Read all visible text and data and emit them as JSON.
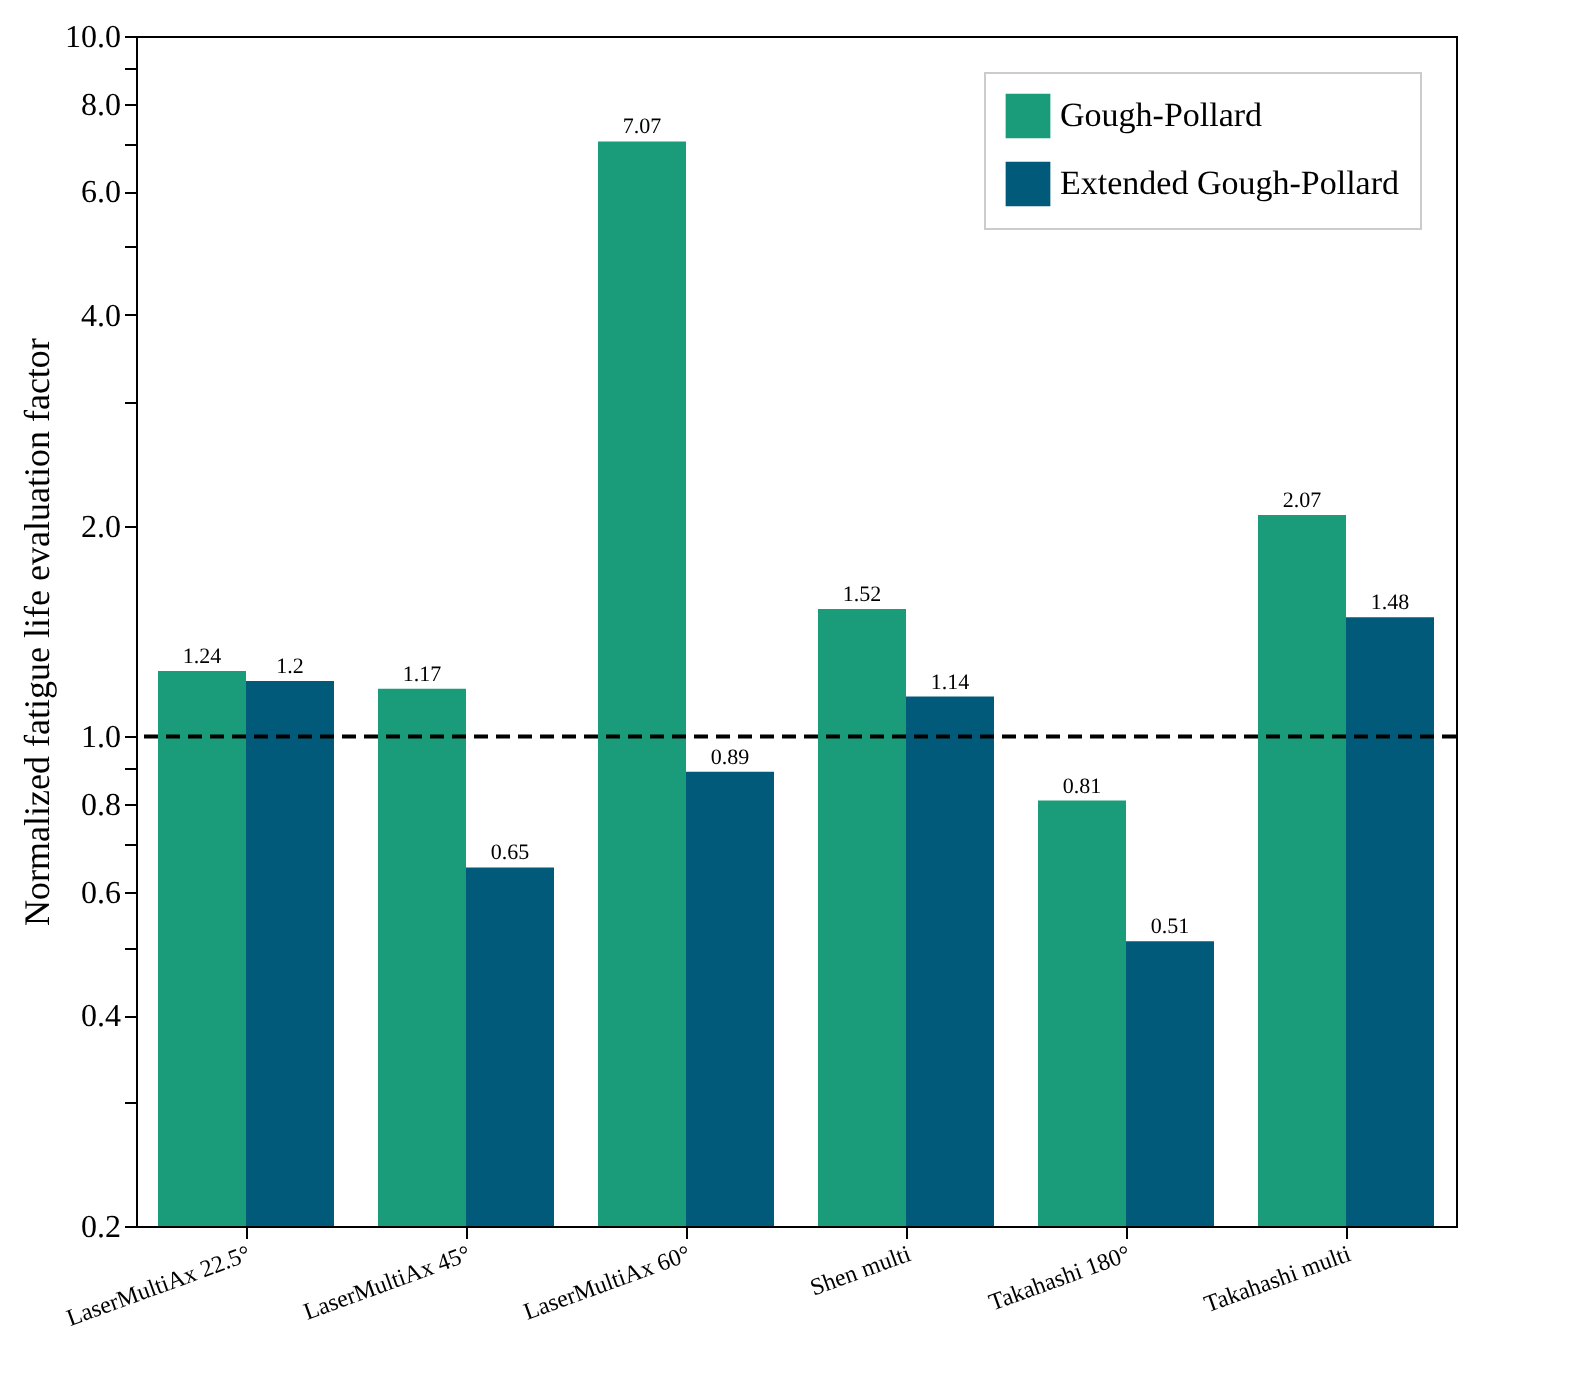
{
  "chart_data": {
    "type": "bar",
    "ylabel": "Normalized fatigue life evaluation factor",
    "categories": [
      "LaserMultiAx 22.5°",
      "LaserMultiAx 45°",
      "LaserMultiAx 60°",
      "Shen multi",
      "Takahashi 180°",
      "Takahashi multi"
    ],
    "series": [
      {
        "name": "Gough-Pollard",
        "color": "#1a9c7b",
        "values": [
          1.24,
          1.17,
          7.07,
          1.52,
          0.81,
          2.07
        ]
      },
      {
        "name": "Extended Gough-Pollard",
        "color": "#025a7b",
        "values": [
          1.2,
          0.65,
          0.89,
          1.14,
          0.51,
          1.48
        ]
      }
    ],
    "log": "y",
    "ylim": [
      0.2,
      10
    ],
    "yticks": [
      0.2,
      {
        "value": 0.3,
        "label": null
      },
      0.4,
      {
        "value": 0.5,
        "label": null
      },
      0.6,
      {
        "value": 0.7,
        "label": null
      },
      0.8,
      {
        "value": 0.9,
        "label": null
      },
      {
        "value": 1,
        "label": "1.0"
      },
      {
        "value": 2,
        "label": "2.0"
      },
      {
        "value": 3,
        "label": null
      },
      {
        "value": 4,
        "label": "4.0"
      },
      {
        "value": 5,
        "label": null
      },
      {
        "value": 6,
        "label": "6.0"
      },
      {
        "value": 7,
        "label": null
      },
      {
        "value": 8,
        "label": "8.0"
      },
      {
        "value": 9,
        "label": null
      },
      {
        "value": 10,
        "label": "10.0"
      }
    ],
    "ref_lines": [
      {
        "axis": "y",
        "value": 1,
        "color": "#000000",
        "line_style": "dashed"
      }
    ],
    "data_labels": true,
    "legend": "top right",
    "grid": false
  }
}
